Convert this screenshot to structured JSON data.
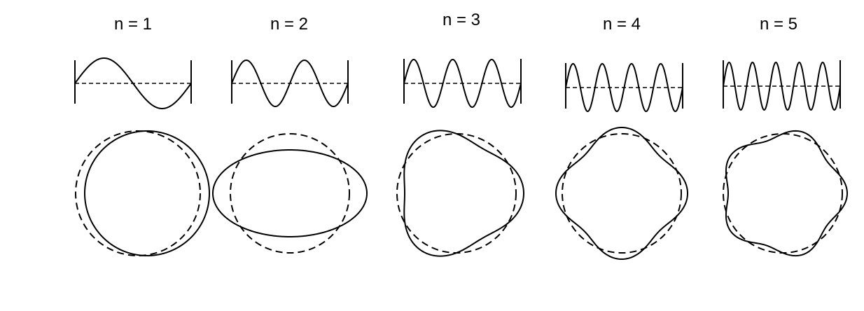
{
  "figure": {
    "modes": [
      {
        "n": 1,
        "label": "n = 1"
      },
      {
        "n": 2,
        "label": "n = 2"
      },
      {
        "n": 3,
        "label": "n = 3"
      },
      {
        "n": 4,
        "label": "n = 4"
      },
      {
        "n": 5,
        "label": "n = 5"
      }
    ],
    "line_color": "#000000",
    "background": "#ffffff"
  }
}
